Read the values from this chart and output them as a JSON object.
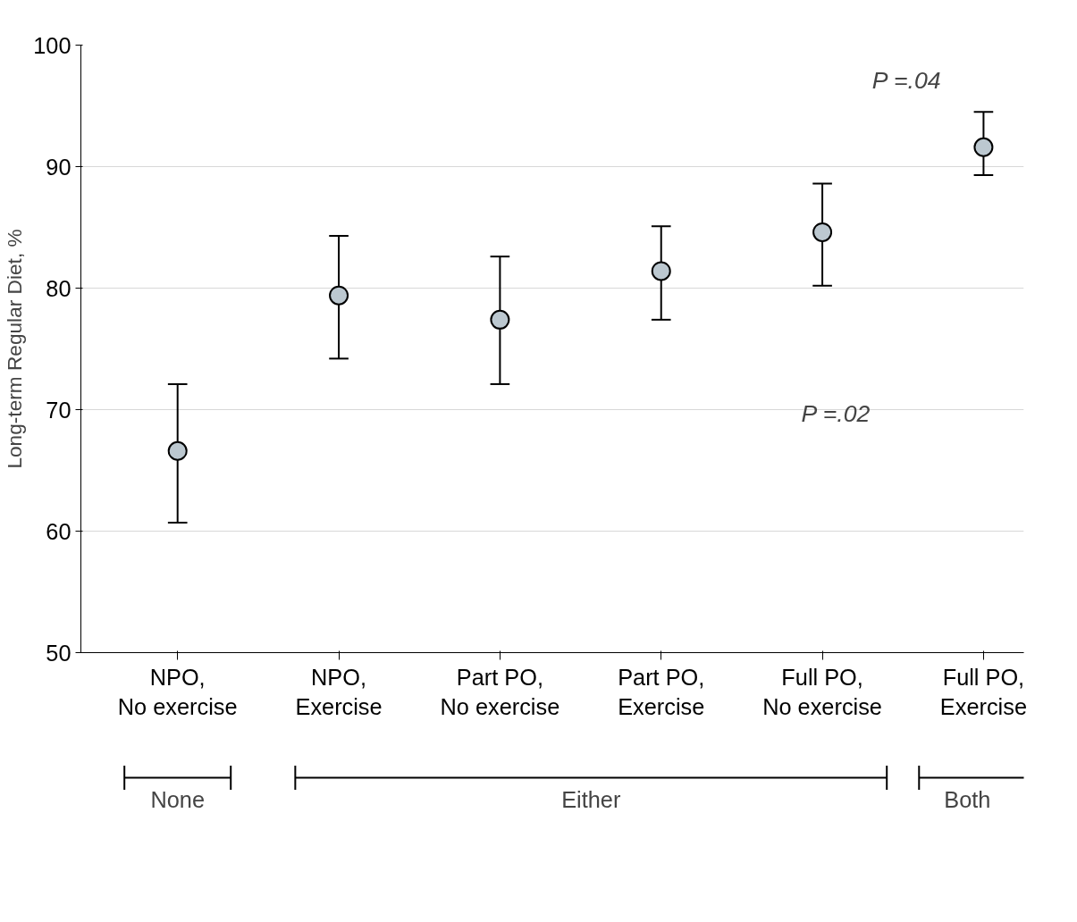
{
  "chart_data": {
    "type": "scatter",
    "ylabel": "Long-term Regular Diet, %",
    "categories": [
      "NPO,\nNo exercise",
      "NPO,\nExercise",
      "Part PO,\nNo exercise",
      "Part PO,\nExercise",
      "Full PO,\nNo exercise",
      "Full PO,\nExercise"
    ],
    "series": [
      {
        "color": "#bcc8d0",
        "values": [
          66.6,
          79.4,
          77.4,
          81.4,
          84.6,
          91.6
        ],
        "errors": [
          [
            60.7,
            72.1
          ],
          [
            74.2,
            84.3
          ],
          [
            72.1,
            82.6
          ],
          [
            77.4,
            85.1
          ],
          [
            80.2,
            88.6
          ],
          [
            89.3,
            94.5
          ]
        ]
      }
    ],
    "ylim": [
      50,
      100
    ],
    "yticks": [
      50,
      60,
      70,
      80,
      90,
      100
    ],
    "grid": "y",
    "marker": "circle",
    "annotations": [
      "P =.04",
      "P =.02",
      "None",
      "Either",
      "Both"
    ]
  }
}
